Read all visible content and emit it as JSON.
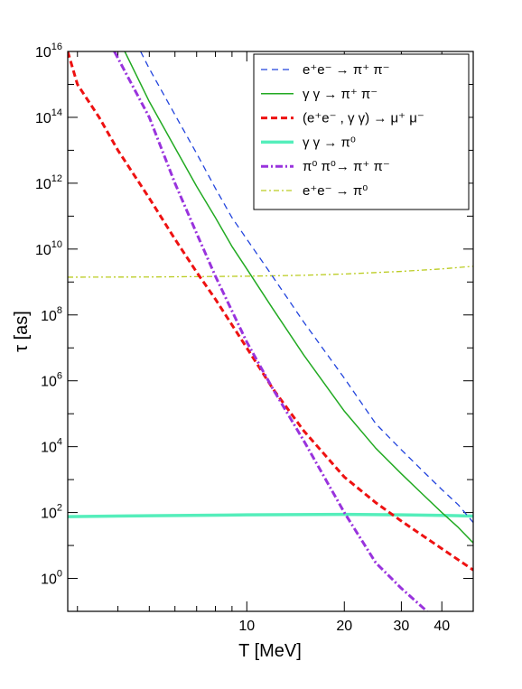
{
  "chart_data": {
    "type": "line",
    "xlabel": "T [MeV]",
    "ylabel": "τ [as]",
    "x_scale": "log",
    "y_scale": "log",
    "xlim": [
      2.8,
      50
    ],
    "ylim": [
      0.1,
      1e+16
    ],
    "x_tick_labels": [
      {
        "value": 10,
        "label": "10"
      },
      {
        "value": 20,
        "label": "20"
      },
      {
        "value": 30,
        "label": "30"
      },
      {
        "value": 40,
        "label": "40"
      }
    ],
    "y_tick_labels": [
      {
        "value": 1,
        "base": "10",
        "exp": "0"
      },
      {
        "value": 100,
        "base": "10",
        "exp": "2"
      },
      {
        "value": 10000,
        "base": "10",
        "exp": "4"
      },
      {
        "value": 1000000,
        "base": "10",
        "exp": "6"
      },
      {
        "value": 100000000,
        "base": "10",
        "exp": "8"
      },
      {
        "value": 10000000000,
        "base": "10",
        "exp": "10"
      },
      {
        "value": 1000000000000,
        "base": "10",
        "exp": "12"
      },
      {
        "value": 100000000000000,
        "base": "10",
        "exp": "14"
      },
      {
        "value": 10000000000000000,
        "base": "10",
        "exp": "16"
      }
    ],
    "legend_position": "top-right",
    "series": [
      {
        "name": "e⁺e⁻ → π⁺ π⁻",
        "color": "#2244dd",
        "dash": "7,5",
        "width": 1.3,
        "x": [
          4.7,
          5,
          6,
          7,
          8,
          9,
          10,
          12,
          15,
          20,
          25,
          30,
          35,
          40,
          45,
          50
        ],
        "y": [
          1e+16,
          3000000000000000.0,
          120000000000000.0,
          8000000000000.0,
          700000000000.0,
          90000000000.0,
          20000000000.0,
          1500000000.0,
          60000000.0,
          1200000.0,
          50000.0,
          8000,
          1800,
          500,
          170,
          50
        ]
      },
      {
        "name": "γ γ → π⁺ π⁻",
        "color": "#22aa22",
        "dash": "",
        "width": 1.5,
        "x": [
          4.2,
          5,
          6,
          7,
          8,
          9,
          10,
          12,
          15,
          20,
          25,
          30,
          35,
          40,
          45,
          50
        ],
        "y": [
          1e+16,
          300000000000000.0,
          12000000000000.0,
          800000000000.0,
          90000000000.0,
          12000000000.0,
          2500000000.0,
          160000000.0,
          6000000.0,
          120000.0,
          9000,
          1500,
          350,
          100,
          35,
          12
        ]
      },
      {
        "name": "(e⁺e⁻ , γ γ) → μ⁺ μ⁻",
        "color": "#ee1111",
        "dash": "7,4",
        "width": 3,
        "x": [
          2.8,
          3,
          3.5,
          4,
          5,
          6,
          7,
          8,
          10,
          12,
          15,
          20,
          25,
          30,
          40,
          50
        ],
        "y": [
          1e+16,
          1000000000000000.0,
          100000000000000.0,
          10000000000000.0,
          350000000000.0,
          20000000000.0,
          2000000000.0,
          300000000.0,
          10000000.0,
          600000.0,
          30000.0,
          1200,
          200,
          55,
          8,
          1.8
        ]
      },
      {
        "name": "γ γ → π⁰",
        "color": "#55eebb",
        "dash": "",
        "width": 3.5,
        "x": [
          2.8,
          5,
          10,
          20,
          30,
          40,
          50
        ],
        "y": [
          75,
          80,
          85,
          88,
          85,
          82,
          78
        ]
      },
      {
        "name": "π⁰ π⁰→ π⁺ π⁻",
        "color": "#9933dd",
        "dash": "8,3,2,3",
        "width": 3,
        "x": [
          3.9,
          5,
          6,
          7,
          8,
          10,
          12,
          15,
          20,
          25,
          30,
          36
        ],
        "y": [
          1e+16,
          100000000000000.0,
          1000000000000.0,
          30000000000.0,
          1500000000.0,
          15000000.0,
          600000.0,
          15000.0,
          100,
          3,
          0.5,
          0.1
        ]
      },
      {
        "name": "e⁺e⁻ → π⁰",
        "color": "#bbcc22",
        "dash": "6,3,2,3",
        "width": 1.3,
        "x": [
          2.8,
          5,
          10,
          15,
          20,
          30,
          40,
          50
        ],
        "y": [
          1400000000.0,
          1420000000.0,
          1500000000.0,
          1600000000.0,
          1750000000.0,
          2100000000.0,
          2500000000.0,
          3000000000.0
        ]
      }
    ]
  }
}
